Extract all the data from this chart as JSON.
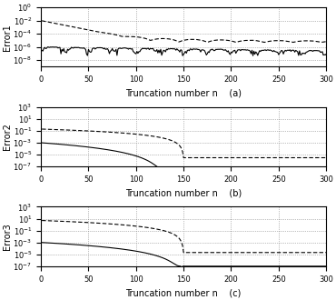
{
  "n_points": 300,
  "n_start": 1,
  "title_a": "(a)",
  "title_b": "(b)",
  "title_c": "(c)",
  "xlabel": "Truncation number n",
  "ylabel1": "Error1",
  "ylabel2": "Error2",
  "ylabel3": "Error3",
  "ylim1": [
    1e-09,
    1.0
  ],
  "ylim2": [
    1e-07,
    1000.0
  ],
  "ylim3": [
    1e-07,
    1000.0
  ],
  "yticks1": [
    1e-08,
    1e-06,
    0.0001,
    0.01,
    1.0
  ],
  "yticks2": [
    1e-07,
    1e-05,
    0.001,
    0.1,
    10.0,
    1000.0
  ],
  "yticks3": [
    1e-07,
    1e-05,
    0.001,
    0.1,
    10.0,
    1000.0
  ],
  "xticks": [
    0,
    50,
    100,
    150,
    200,
    250,
    300
  ],
  "xlim": [
    0,
    300
  ],
  "solid_color": "black",
  "dashed_color": "black",
  "linewidth": 0.8
}
